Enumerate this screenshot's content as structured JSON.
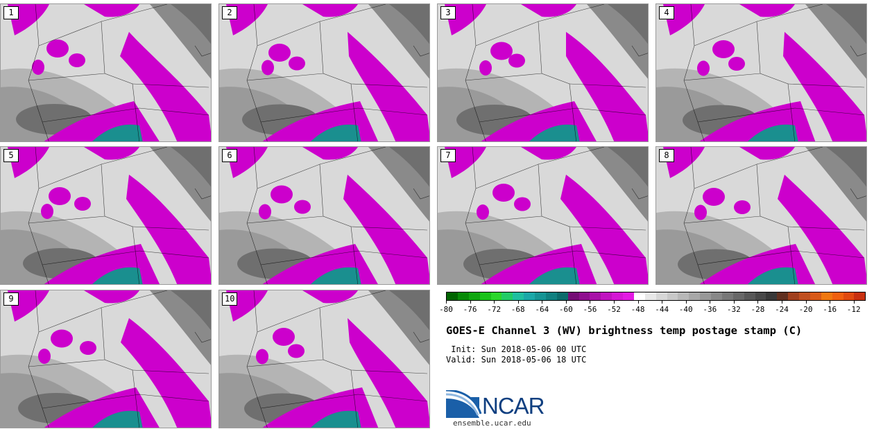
{
  "panels": [
    {
      "label": "1"
    },
    {
      "label": "2"
    },
    {
      "label": "3"
    },
    {
      "label": "4"
    },
    {
      "label": "5"
    },
    {
      "label": "6"
    },
    {
      "label": "7"
    },
    {
      "label": "8"
    },
    {
      "label": "9"
    },
    {
      "label": "10"
    }
  ],
  "colorbar": {
    "tick_labels": [
      "-80",
      "-76",
      "-72",
      "-68",
      "-64",
      "-60",
      "-56",
      "-52",
      "-48",
      "-44",
      "-40",
      "-36",
      "-32",
      "-28",
      "-24",
      "-20",
      "-16",
      "-12"
    ],
    "colors": [
      "#006400",
      "#078a07",
      "#0fa60f",
      "#1ac21a",
      "#2bd62b",
      "#22cc66",
      "#1fbfa0",
      "#1aa8a8",
      "#159494",
      "#108080",
      "#0c6b6b",
      "#750d75",
      "#8f0f8f",
      "#a812a8",
      "#c015c0",
      "#d418d4",
      "#e31be3",
      "#ffffff",
      "#e8e8e8",
      "#d7d7d7",
      "#c8c8c8",
      "#b8b8b8",
      "#a8a8a8",
      "#989898",
      "#888888",
      "#787878",
      "#686868",
      "#585858",
      "#484848",
      "#383838",
      "#603020",
      "#a0401e",
      "#c05020",
      "#d85a18",
      "#f07810",
      "#f06010",
      "#e04a10",
      "#c83010"
    ],
    "min": -80,
    "max": -10
  },
  "title": "GOES-E Channel 3 (WV) brightness temp postage stamp (C)",
  "init": " Init: Sun 2018-05-06 00 UTC",
  "valid": "Valid: Sun 2018-05-06 18 UTC",
  "logo_text": "NCAR",
  "site": "ensemble.ucar.edu",
  "colors": {
    "moist": "#cc00cc",
    "dry_dark": "#6f6f6f",
    "mid": "#b4b4b4",
    "light": "#d9d9d9",
    "teal": "#1a8f8f"
  }
}
